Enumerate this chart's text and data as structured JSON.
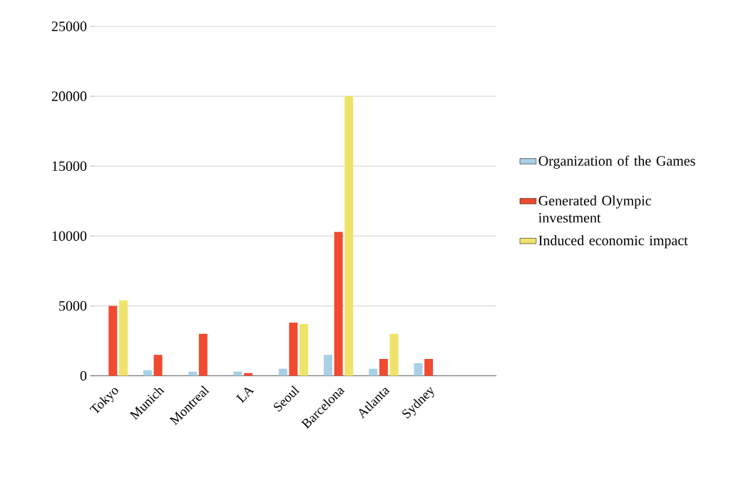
{
  "chart_data": {
    "type": "bar",
    "categories": [
      "Tokyo",
      "Munich",
      "Montreal",
      "LA",
      "Seoul",
      "Barcelona",
      "Atlanta",
      "Sydney",
      null
    ],
    "series": [
      {
        "name": "Organization of the Games",
        "color": "#a8d0e6",
        "values": [
          null,
          400,
          300,
          300,
          500,
          1500,
          500,
          900,
          null
        ]
      },
      {
        "name": "Generated Olympic investment",
        "color": "#f04a30",
        "values": [
          5000,
          1500,
          3000,
          200,
          3800,
          10300,
          1200,
          1200,
          null
        ]
      },
      {
        "name": "Induced economic impact",
        "color": "#f0e36a",
        "values": [
          5400,
          null,
          null,
          null,
          3700,
          20000,
          3000,
          null,
          null
        ]
      }
    ],
    "ylim": [
      0,
      25000
    ],
    "yticks": [
      0,
      5000,
      10000,
      15000,
      20000,
      25000
    ],
    "grid": "y",
    "legend": "right"
  }
}
